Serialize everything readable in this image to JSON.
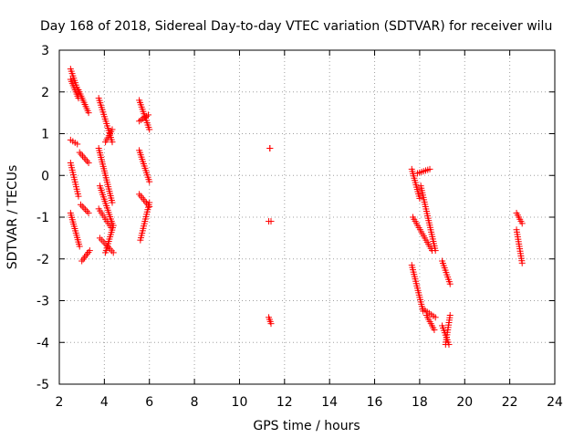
{
  "chart_data": {
    "type": "scatter",
    "title": "Day 168 of 2018, Sidereal Day-to-day VTEC variation (SDTVAR) for receiver wilu",
    "xlabel": "GPS time / hours",
    "ylabel": "SDTVAR / TECUs",
    "xlim": [
      2,
      24
    ],
    "ylim": [
      -5,
      3
    ],
    "xticks": [
      "2",
      "4",
      "6",
      "8",
      "10",
      "12",
      "14",
      "16",
      "18",
      "20",
      "22",
      "24"
    ],
    "yticks": [
      "3",
      "2",
      "1",
      "0",
      "-1",
      "-2",
      "-3",
      "-4",
      "-5"
    ],
    "grid": true,
    "marker": "plus",
    "color": "#ff0000",
    "segments": [
      {
        "x": [
          2.5,
          2.85
        ],
        "y": [
          2.55,
          2.0
        ]
      },
      {
        "x": [
          2.5,
          2.85
        ],
        "y": [
          2.3,
          1.85
        ]
      },
      {
        "x": [
          2.85,
          3.3
        ],
        "y": [
          2.05,
          1.5
        ]
      },
      {
        "x": [
          2.5,
          2.8
        ],
        "y": [
          0.85,
          0.75
        ]
      },
      {
        "x": [
          2.5,
          2.85
        ],
        "y": [
          0.3,
          -0.5
        ]
      },
      {
        "x": [
          2.9,
          3.3
        ],
        "y": [
          0.55,
          0.3
        ]
      },
      {
        "x": [
          2.95,
          3.3
        ],
        "y": [
          -0.7,
          -0.9
        ]
      },
      {
        "x": [
          2.5,
          2.9
        ],
        "y": [
          -0.9,
          -1.7
        ]
      },
      {
        "x": [
          3.0,
          3.35
        ],
        "y": [
          -2.05,
          -1.8
        ]
      },
      {
        "x": [
          3.75,
          4.35
        ],
        "y": [
          1.85,
          0.8
        ]
      },
      {
        "x": [
          4.05,
          4.35
        ],
        "y": [
          0.8,
          1.1
        ]
      },
      {
        "x": [
          3.75,
          4.35
        ],
        "y": [
          0.65,
          -0.65
        ]
      },
      {
        "x": [
          3.75,
          4.3
        ],
        "y": [
          -0.8,
          -1.25
        ]
      },
      {
        "x": [
          3.8,
          4.35
        ],
        "y": [
          -0.25,
          -1.15
        ]
      },
      {
        "x": [
          3.8,
          4.4
        ],
        "y": [
          -1.5,
          -1.85
        ]
      },
      {
        "x": [
          4.05,
          4.4
        ],
        "y": [
          -1.85,
          -1.2
        ]
      },
      {
        "x": [
          5.55,
          6.0
        ],
        "y": [
          1.8,
          1.1
        ]
      },
      {
        "x": [
          5.55,
          5.95
        ],
        "y": [
          1.3,
          1.45
        ]
      },
      {
        "x": [
          5.55,
          6.0
        ],
        "y": [
          0.6,
          -0.15
        ]
      },
      {
        "x": [
          5.55,
          6.0
        ],
        "y": [
          -0.45,
          -0.75
        ]
      },
      {
        "x": [
          5.6,
          6.0
        ],
        "y": [
          -1.55,
          -0.65
        ]
      },
      {
        "x": [
          11.35,
          11.35
        ],
        "y": [
          0.65,
          0.65
        ]
      },
      {
        "x": [
          11.3,
          11.4
        ],
        "y": [
          -1.1,
          -1.1
        ]
      },
      {
        "x": [
          11.3,
          11.4
        ],
        "y": [
          -3.4,
          -3.55
        ]
      },
      {
        "x": [
          17.65,
          18.0
        ],
        "y": [
          0.15,
          -0.55
        ]
      },
      {
        "x": [
          17.9,
          18.45
        ],
        "y": [
          0.05,
          0.15
        ]
      },
      {
        "x": [
          17.7,
          18.55
        ],
        "y": [
          -1.0,
          -1.8
        ]
      },
      {
        "x": [
          18.05,
          18.7
        ],
        "y": [
          -0.25,
          -1.8
        ]
      },
      {
        "x": [
          17.65,
          18.15
        ],
        "y": [
          -2.15,
          -3.25
        ]
      },
      {
        "x": [
          18.15,
          18.7
        ],
        "y": [
          -3.2,
          -3.4
        ]
      },
      {
        "x": [
          18.3,
          18.65
        ],
        "y": [
          -3.35,
          -3.7
        ]
      },
      {
        "x": [
          19.0,
          19.35
        ],
        "y": [
          -2.05,
          -2.6
        ]
      },
      {
        "x": [
          19.0,
          19.3
        ],
        "y": [
          -3.6,
          -4.05
        ]
      },
      {
        "x": [
          19.15,
          19.35
        ],
        "y": [
          -4.05,
          -3.35
        ]
      },
      {
        "x": [
          22.3,
          22.55
        ],
        "y": [
          -0.9,
          -1.15
        ]
      },
      {
        "x": [
          22.3,
          22.55
        ],
        "y": [
          -1.3,
          -2.1
        ]
      }
    ]
  }
}
